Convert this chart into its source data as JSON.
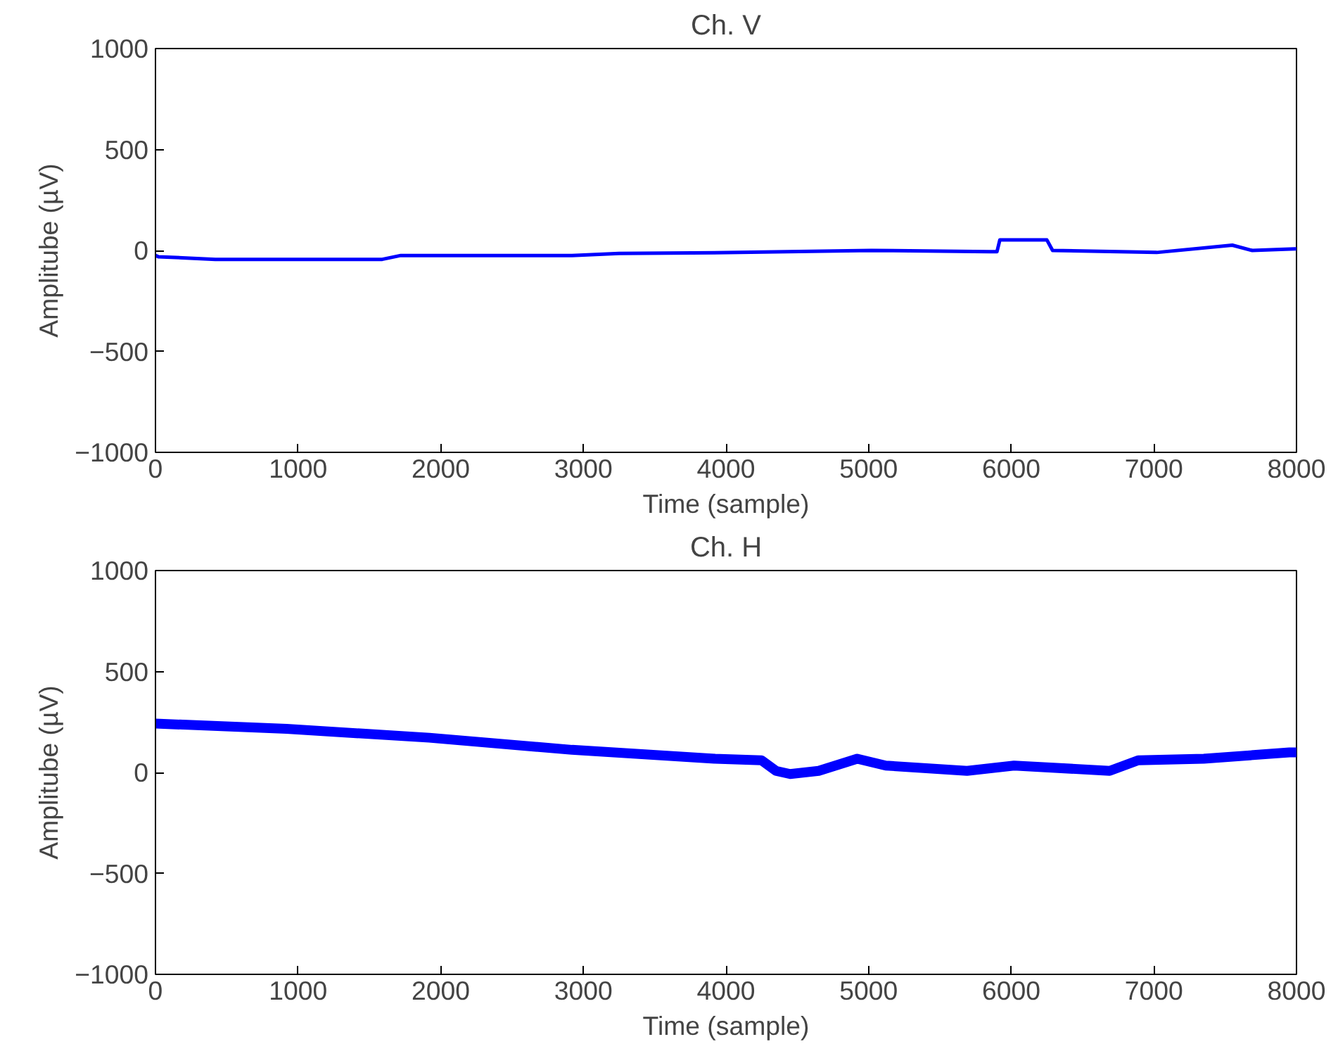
{
  "chart_data": [
    {
      "type": "line",
      "title": "Ch. V",
      "xlabel": "Time (sample)",
      "ylabel": "Amplitube (µV)",
      "xlim": [
        0,
        8000
      ],
      "ylim": [
        -1000,
        1000
      ],
      "xticks": [
        0,
        1000,
        2000,
        3000,
        4000,
        5000,
        6000,
        7000,
        8000
      ],
      "yticks": [
        -1000,
        -500,
        0,
        500,
        1000
      ],
      "grid": false,
      "series": [
        {
          "color": "#0000ff",
          "x": [
            0,
            20,
            420,
            1590,
            1720,
            2920,
            3250,
            4090,
            5020,
            5850,
            5900,
            5920,
            6220,
            6250,
            6290,
            7020,
            7550,
            7690,
            7990,
            8000
          ],
          "values": [
            -25,
            -31,
            -44,
            -44,
            -25,
            -25,
            -15,
            -10,
            0,
            -6,
            -6,
            52,
            52,
            52,
            0,
            -10,
            26,
            0,
            8,
            8
          ]
        }
      ]
    },
    {
      "type": "line",
      "title": "Ch. H",
      "xlabel": "Time (sample)",
      "ylabel": "Amplitube (µV)",
      "xlim": [
        0,
        8000
      ],
      "ylim": [
        -1000,
        1000
      ],
      "xticks": [
        0,
        1000,
        2000,
        3000,
        4000,
        5000,
        6000,
        7000,
        8000
      ],
      "yticks": [
        -1000,
        -500,
        0,
        500,
        1000
      ],
      "grid": false,
      "series": [
        {
          "color": "#0000ff",
          "x": [
            0,
            920,
            1920,
            2920,
            3920,
            4250,
            4350,
            4450,
            4650,
            4920,
            5120,
            5690,
            6020,
            6690,
            6890,
            7350,
            7950,
            8000
          ],
          "values": [
            242,
            216,
            172,
            112,
            68,
            60,
            8,
            -8,
            8,
            68,
            34,
            8,
            34,
            8,
            60,
            68,
            99,
            99
          ]
        }
      ]
    }
  ]
}
